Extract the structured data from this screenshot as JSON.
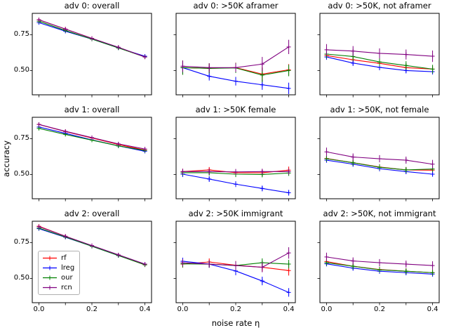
{
  "figure": {
    "ylabel": "accuracy",
    "xlabel": "noise rate η",
    "background": "#ffffff"
  },
  "legend": {
    "entries": [
      {
        "label": "rf",
        "color": "#ff0000"
      },
      {
        "label": "lreg",
        "color": "#0000ff"
      },
      {
        "label": "our",
        "color": "#008000"
      },
      {
        "label": "rcn",
        "color": "#800080"
      }
    ],
    "position": "lower left of bottom-left subplot"
  },
  "axes": {
    "xlim": [
      -0.025,
      0.425
    ],
    "ylim": [
      0.33,
      0.9
    ],
    "x_ticks": [
      0.0,
      0.1,
      0.2,
      0.3,
      0.4
    ],
    "x_tick_labels": [
      {
        "value": 0.0,
        "label": "0.0"
      },
      {
        "value": 0.2,
        "label": "0.2"
      },
      {
        "value": 0.4,
        "label": "0.4"
      }
    ],
    "y_tick_labels": [
      {
        "value": 0.75,
        "label": "0.75"
      },
      {
        "value": 0.5,
        "label": "0.50"
      }
    ],
    "grid": false,
    "shared_x": true,
    "shared_y_per_row": true
  },
  "chart_data": [
    {
      "type": "line",
      "title": "adv 0: overall",
      "row": 0,
      "col": 0,
      "x": [
        0.0,
        0.1,
        0.2,
        0.3,
        0.4
      ],
      "series": [
        {
          "name": "rf",
          "color": "#ff0000",
          "values": [
            0.855,
            0.79,
            0.725,
            0.66,
            0.595
          ],
          "errors": 0.008
        },
        {
          "name": "lreg",
          "color": "#0000ff",
          "values": [
            0.835,
            0.775,
            0.72,
            0.658,
            0.6
          ],
          "errors": 0.008
        },
        {
          "name": "our",
          "color": "#008000",
          "values": [
            0.845,
            0.78,
            0.72,
            0.658,
            0.595
          ],
          "errors": 0.008
        },
        {
          "name": "rcn",
          "color": "#800080",
          "values": [
            0.855,
            0.79,
            0.725,
            0.663,
            0.595
          ],
          "errors": 0.01
        }
      ]
    },
    {
      "type": "line",
      "title": "adv 0: >50K aframer",
      "row": 0,
      "col": 1,
      "x": [
        0.0,
        0.1,
        0.2,
        0.3,
        0.4
      ],
      "series": [
        {
          "name": "rf",
          "color": "#ff0000",
          "values": [
            0.52,
            0.515,
            0.52,
            0.475,
            0.505
          ],
          "errors": [
            0.05,
            0.035,
            0.035,
            0.05,
            0.04
          ]
        },
        {
          "name": "lreg",
          "color": "#0000ff",
          "values": [
            0.52,
            0.46,
            0.425,
            0.4,
            0.375
          ],
          "errors": [
            0.04,
            0.03,
            0.03,
            0.035,
            0.04
          ]
        },
        {
          "name": "our",
          "color": "#008000",
          "values": [
            0.52,
            0.515,
            0.518,
            0.468,
            0.5
          ],
          "errors": [
            0.05,
            0.035,
            0.035,
            0.05,
            0.04
          ]
        },
        {
          "name": "rcn",
          "color": "#800080",
          "values": [
            0.53,
            0.52,
            0.52,
            0.545,
            0.665
          ],
          "errors": [
            0.04,
            0.03,
            0.03,
            0.05,
            0.05
          ]
        }
      ]
    },
    {
      "type": "line",
      "title": "adv 0: >50K, not aframer",
      "row": 0,
      "col": 2,
      "x": [
        0.0,
        0.1,
        0.2,
        0.3,
        0.4
      ],
      "series": [
        {
          "name": "rf",
          "color": "#ff0000",
          "values": [
            0.605,
            0.575,
            0.55,
            0.52,
            0.51
          ],
          "errors": 0.025
        },
        {
          "name": "lreg",
          "color": "#0000ff",
          "values": [
            0.595,
            0.552,
            0.522,
            0.5,
            0.492
          ],
          "errors": 0.02
        },
        {
          "name": "our",
          "color": "#008000",
          "values": [
            0.615,
            0.598,
            0.56,
            0.535,
            0.51
          ],
          "errors": 0.03
        },
        {
          "name": "rcn",
          "color": "#800080",
          "values": [
            0.645,
            0.636,
            0.62,
            0.612,
            0.6
          ],
          "errors": [
            0.04,
            0.035,
            0.035,
            0.035,
            0.04
          ]
        }
      ]
    },
    {
      "type": "line",
      "title": "adv 1: overall",
      "row": 1,
      "col": 0,
      "x": [
        0.0,
        0.1,
        0.2,
        0.3,
        0.4
      ],
      "series": [
        {
          "name": "rf",
          "color": "#ff0000",
          "values": [
            0.85,
            0.8,
            0.755,
            0.71,
            0.67
          ],
          "errors": 0.008
        },
        {
          "name": "lreg",
          "color": "#0000ff",
          "values": [
            0.832,
            0.788,
            0.742,
            0.7,
            0.662
          ],
          "errors": 0.008
        },
        {
          "name": "our",
          "color": "#008000",
          "values": [
            0.822,
            0.78,
            0.74,
            0.7,
            0.668
          ],
          "errors": 0.008
        },
        {
          "name": "rcn",
          "color": "#800080",
          "values": [
            0.85,
            0.802,
            0.758,
            0.714,
            0.678
          ],
          "errors": 0.01
        }
      ]
    },
    {
      "type": "line",
      "title": "adv 1: >50K female",
      "row": 1,
      "col": 1,
      "x": [
        0.0,
        0.1,
        0.2,
        0.3,
        0.4
      ],
      "series": [
        {
          "name": "rf",
          "color": "#ff0000",
          "values": [
            0.52,
            0.532,
            0.512,
            0.512,
            0.53
          ],
          "errors": [
            0.02,
            0.02,
            0.02,
            0.02,
            0.025
          ]
        },
        {
          "name": "lreg",
          "color": "#0000ff",
          "values": [
            0.502,
            0.468,
            0.432,
            0.402,
            0.372
          ],
          "errors": 0.02
        },
        {
          "name": "our",
          "color": "#008000",
          "values": [
            0.512,
            0.512,
            0.502,
            0.5,
            0.51
          ],
          "errors": 0.02
        },
        {
          "name": "rcn",
          "color": "#800080",
          "values": [
            0.52,
            0.52,
            0.518,
            0.52,
            0.52
          ],
          "errors": 0.02
        }
      ]
    },
    {
      "type": "line",
      "title": "adv 1: >50K, not female",
      "row": 1,
      "col": 2,
      "x": [
        0.0,
        0.1,
        0.2,
        0.3,
        0.4
      ],
      "series": [
        {
          "name": "rf",
          "color": "#ff0000",
          "values": [
            0.612,
            0.582,
            0.552,
            0.532,
            0.53
          ],
          "errors": 0.02
        },
        {
          "name": "lreg",
          "color": "#0000ff",
          "values": [
            0.6,
            0.572,
            0.54,
            0.52,
            0.502
          ],
          "errors": 0.018
        },
        {
          "name": "our",
          "color": "#008000",
          "values": [
            0.61,
            0.582,
            0.55,
            0.532,
            0.538
          ],
          "errors": 0.02
        },
        {
          "name": "rcn",
          "color": "#800080",
          "values": [
            0.658,
            0.622,
            0.61,
            0.6,
            0.572
          ],
          "errors": [
            0.03,
            0.025,
            0.025,
            0.025,
            0.03
          ]
        }
      ]
    },
    {
      "type": "line",
      "title": "adv 2: overall",
      "row": 2,
      "col": 0,
      "x": [
        0.0,
        0.1,
        0.2,
        0.3,
        0.4
      ],
      "series": [
        {
          "name": "rf",
          "color": "#ff0000",
          "values": [
            0.865,
            0.795,
            0.728,
            0.662,
            0.595
          ],
          "errors": 0.008
        },
        {
          "name": "lreg",
          "color": "#0000ff",
          "values": [
            0.848,
            0.788,
            0.725,
            0.66,
            0.6
          ],
          "errors": 0.008
        },
        {
          "name": "our",
          "color": "#008000",
          "values": [
            0.852,
            0.79,
            0.725,
            0.66,
            0.595
          ],
          "errors": 0.008
        },
        {
          "name": "rcn",
          "color": "#800080",
          "values": [
            0.862,
            0.795,
            0.73,
            0.665,
            0.6
          ],
          "errors": 0.01
        }
      ]
    },
    {
      "type": "line",
      "title": "adv 2: >50K immigrant",
      "row": 2,
      "col": 1,
      "x": [
        0.0,
        0.1,
        0.2,
        0.3,
        0.4
      ],
      "series": [
        {
          "name": "rf",
          "color": "#ff0000",
          "values": [
            0.6,
            0.615,
            0.592,
            0.578,
            0.555
          ],
          "errors": [
            0.025,
            0.025,
            0.03,
            0.03,
            0.035
          ]
        },
        {
          "name": "lreg",
          "color": "#0000ff",
          "values": [
            0.62,
            0.6,
            0.552,
            0.482,
            0.402
          ],
          "errors": [
            0.025,
            0.025,
            0.03,
            0.03,
            0.03
          ]
        },
        {
          "name": "our",
          "color": "#008000",
          "values": [
            0.602,
            0.6,
            0.59,
            0.61,
            0.6
          ],
          "errors": [
            0.025,
            0.025,
            0.03,
            0.03,
            0.03
          ]
        },
        {
          "name": "rcn",
          "color": "#800080",
          "values": [
            0.61,
            0.6,
            0.59,
            0.578,
            0.678
          ],
          "errors": [
            0.025,
            0.025,
            0.03,
            0.035,
            0.04
          ]
        }
      ]
    },
    {
      "type": "line",
      "title": "adv 2: >50K, not immigrant",
      "row": 2,
      "col": 2,
      "x": [
        0.0,
        0.1,
        0.2,
        0.3,
        0.4
      ],
      "series": [
        {
          "name": "rf",
          "color": "#ff0000",
          "values": [
            0.618,
            0.585,
            0.562,
            0.55,
            0.54
          ],
          "errors": 0.02
        },
        {
          "name": "lreg",
          "color": "#0000ff",
          "values": [
            0.602,
            0.572,
            0.55,
            0.54,
            0.53
          ],
          "errors": 0.018
        },
        {
          "name": "our",
          "color": "#008000",
          "values": [
            0.61,
            0.585,
            0.56,
            0.55,
            0.54
          ],
          "errors": 0.02
        },
        {
          "name": "rcn",
          "color": "#800080",
          "values": [
            0.65,
            0.622,
            0.61,
            0.6,
            0.59
          ],
          "errors": [
            0.03,
            0.025,
            0.025,
            0.025,
            0.03
          ]
        }
      ]
    }
  ]
}
